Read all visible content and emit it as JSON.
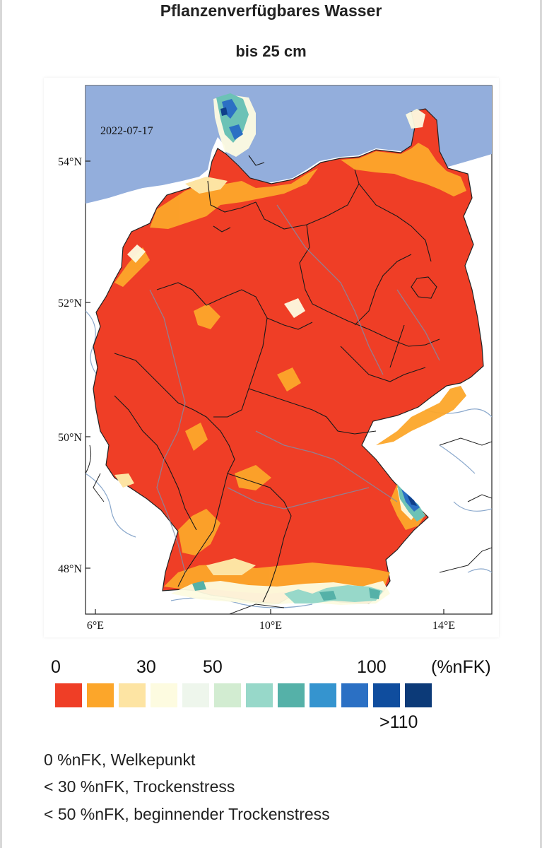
{
  "title": "Pflanzenverfügbares Wasser",
  "subtitle": "bis 25 cm",
  "map": {
    "date": "2022-07-17",
    "lat_labels": [
      "54°N",
      "52°N",
      "50°N",
      "48°N"
    ],
    "lon_labels": [
      "6°E",
      "10°E",
      "14°E"
    ],
    "colors": {
      "sea": "#93aedc",
      "neighbor_land": "#ffffff",
      "dry_red": "#ef3e26",
      "orange": "#fca62a",
      "light_orange": "#fde4a3",
      "cream": "#fdfbe0",
      "green_blue": "#6cc2b6",
      "blue": "#2b70c4",
      "dark_blue": "#0f3f8a",
      "river": "#8aa8cc",
      "border": "#222222"
    }
  },
  "scale": {
    "labels": {
      "zero": "0",
      "thirty": "30",
      "fifty": "50",
      "hundred": "100",
      "unit": "(%nFK)",
      "over": ">110"
    },
    "swatches": [
      "#ef3e26",
      "#fca62a",
      "#fde4a3",
      "#fdfbe0",
      "#eef6ec",
      "#d2ecd1",
      "#97d8c9",
      "#55b1a8",
      "#3594cf",
      "#2b70c4",
      "#0f4d9e",
      "#0c3a78"
    ]
  },
  "notes": [
    "0 %nFK, Welkepunkt",
    "< 30 %nFK, Trockenstress",
    "< 50 %nFK, beginnender Trockenstress"
  ]
}
